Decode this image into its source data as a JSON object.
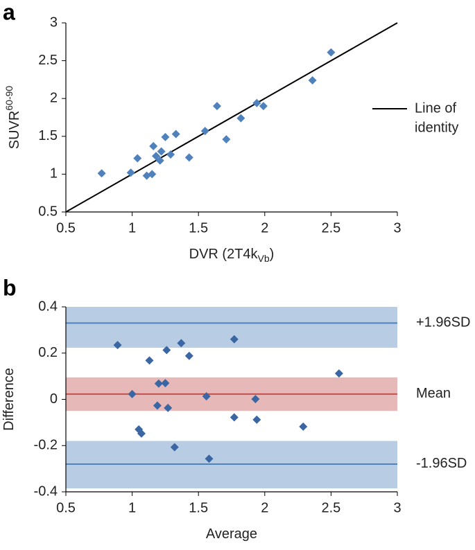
{
  "charts": [
    {
      "type": "scatter",
      "panel_label": "a",
      "x_label": "DVR (2T4k",
      "x_label_sub": "Vb",
      "x_label_end": ")",
      "y_label": "SUVR",
      "y_label_sup": "60-90",
      "xlim": [
        0.5,
        3
      ],
      "ylim": [
        0.5,
        3
      ],
      "xticks": [
        0.5,
        1,
        1.5,
        2,
        2.5,
        3
      ],
      "yticks": [
        0.5,
        1,
        1.5,
        2,
        2.5,
        3
      ],
      "series": [
        {
          "color": "#4f81bd",
          "x": [
            0.77,
            0.99,
            1.04,
            1.11,
            1.15,
            1.16,
            1.18,
            1.21,
            1.22,
            1.25,
            1.29,
            1.33,
            1.43,
            1.55,
            1.64,
            1.71,
            1.82,
            1.94,
            1.99,
            2.36,
            2.5
          ],
          "values": [
            1.01,
            1.02,
            1.21,
            0.98,
            1.0,
            1.37,
            1.24,
            1.18,
            1.3,
            1.49,
            1.26,
            1.53,
            1.22,
            1.57,
            1.9,
            1.46,
            1.74,
            1.94,
            1.9,
            2.24,
            2.61
          ]
        }
      ],
      "reference_lines": [
        {
          "name_lines": [
            "Line of",
            "identity"
          ],
          "color": "#000000",
          "from": [
            0.5,
            0.5
          ],
          "to": [
            3,
            3
          ]
        }
      ]
    },
    {
      "type": "scatter",
      "panel_label": "b",
      "x_label": "Average",
      "y_label": "Difference",
      "xlim": [
        0.5,
        3
      ],
      "ylim": [
        -0.4,
        0.4
      ],
      "xticks": [
        0.5,
        1,
        1.5,
        2,
        2.5,
        3
      ],
      "yticks": [
        -0.4,
        -0.2,
        0,
        0.2,
        0.4
      ],
      "bands": [
        {
          "ymin": 0.223,
          "ymax": 0.4,
          "color": "#b8cce4"
        },
        {
          "ymin": -0.05,
          "ymax": 0.095,
          "color": "#e6b9b8"
        },
        {
          "ymin": -0.385,
          "ymax": -0.18,
          "color": "#b8cce4"
        }
      ],
      "hlines": [
        {
          "y": 0.33,
          "label": "+1.96SD",
          "color": "#4f81bd"
        },
        {
          "y": 0.023,
          "label": "Mean",
          "color": "#c0504d"
        },
        {
          "y": -0.28,
          "label": "-1.96SD",
          "color": "#4f81bd"
        }
      ],
      "series": [
        {
          "color": "#3a67a3",
          "x": [
            0.89,
            1.13,
            1.26,
            1.37,
            1.43,
            1.77,
            2.56,
            1.0,
            1.2,
            1.25,
            1.19,
            1.27,
            1.56,
            1.93,
            1.77,
            1.94,
            2.29,
            1.05,
            1.07,
            1.32,
            1.58
          ],
          "values": [
            0.235,
            0.168,
            0.213,
            0.243,
            0.188,
            0.26,
            0.112,
            0.023,
            0.068,
            0.07,
            -0.027,
            -0.037,
            0.013,
            0.001,
            -0.078,
            -0.088,
            -0.118,
            -0.13,
            -0.148,
            -0.207,
            -0.257
          ]
        }
      ]
    }
  ]
}
